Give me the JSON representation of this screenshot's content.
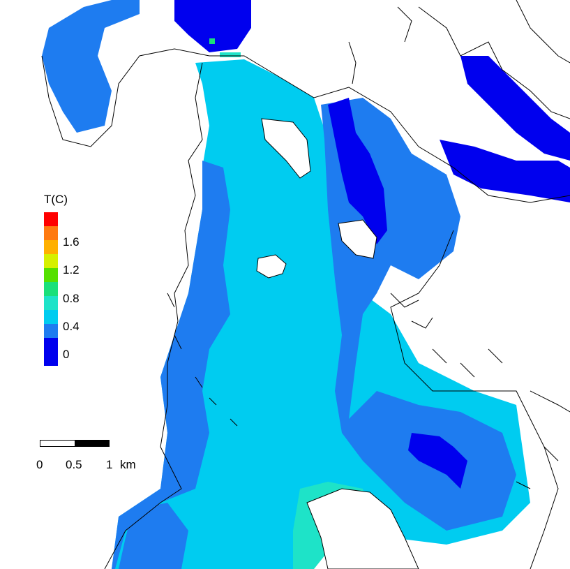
{
  "legend": {
    "title": "T(C)",
    "swatches": [
      {
        "color": "#ff0000"
      },
      {
        "color": "#ff7a10"
      },
      {
        "color": "#ffb000"
      },
      {
        "color": "#d6f000"
      },
      {
        "color": "#55e000"
      },
      {
        "color": "#1ae07a"
      },
      {
        "color": "#1ee3c8"
      },
      {
        "color": "#00ccf0"
      },
      {
        "color": "#1e7cf0"
      },
      {
        "color": "#0000ee"
      }
    ],
    "labels": [
      "1.6",
      "1.2",
      "0.8",
      "0.4",
      "0"
    ]
  },
  "scalebar": {
    "labels": [
      "0",
      "0.5",
      "1",
      "km"
    ]
  },
  "colors": {
    "land": "#ffffff",
    "coast": "#000000",
    "temp_0": "#0000ee",
    "temp_0_2": "#1e7cf0",
    "temp_0_4": "#00ccf0",
    "temp_0_6": "#1ee3c8",
    "temp_0_8": "#1ae07a",
    "temp_1_0": "#55e000"
  }
}
